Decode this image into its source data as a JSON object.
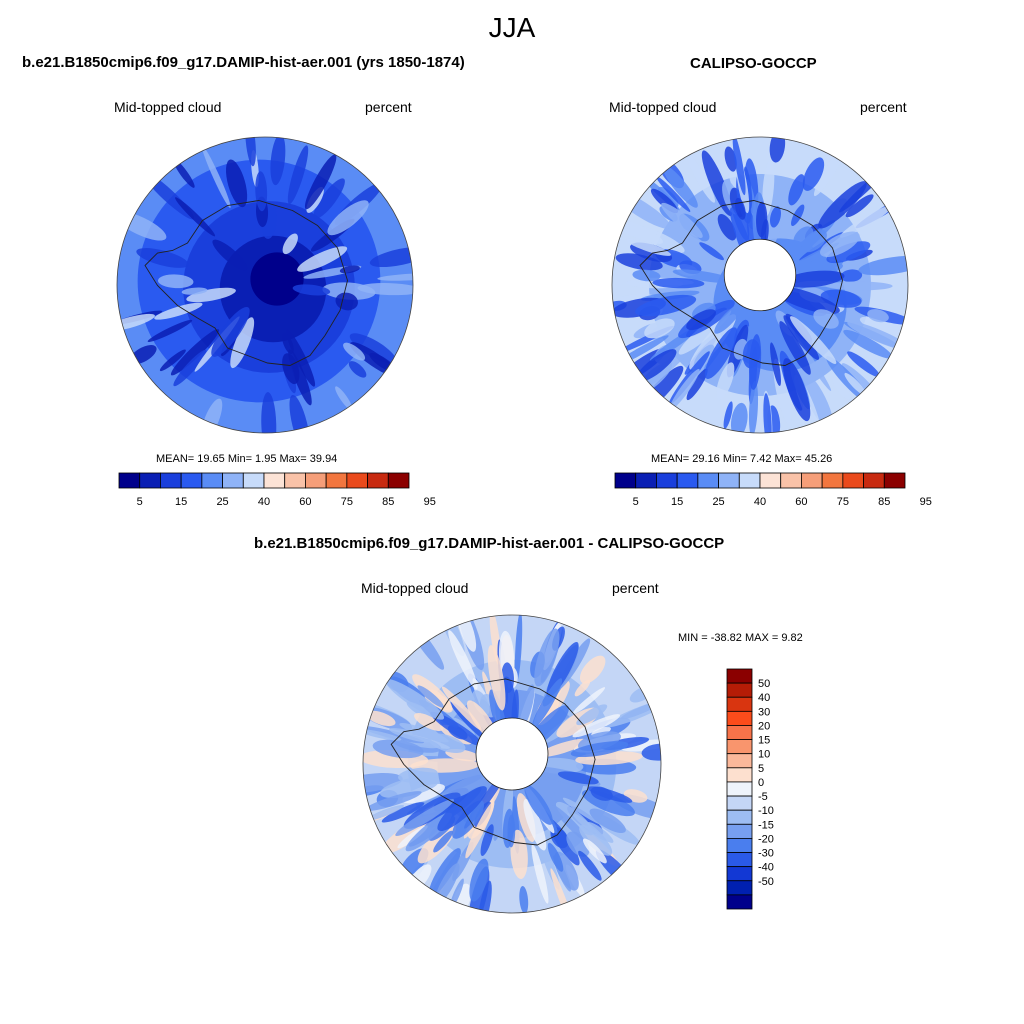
{
  "figure": {
    "title": "JJA"
  },
  "panels": [
    {
      "id": "model",
      "title": "b.e21.B1850cmip6.f09_g17.DAMIP-hist-aer.001 (yrs 1850-1874)",
      "left_label": "Mid-topped cloud",
      "right_label": "percent",
      "stats": "MEAN=  19.65  Min=    1.95  Max=  39.94",
      "hole": false
    },
    {
      "id": "obs",
      "title": "CALIPSO-GOCCP",
      "left_label": "Mid-topped cloud",
      "right_label": "percent",
      "stats": "MEAN=  29.16  Min=    7.42  Max=  45.26",
      "hole": true
    },
    {
      "id": "diff",
      "title": "b.e21.B1850cmip6.f09_g17.DAMIP-hist-aer.001 - CALIPSO-GOCCP",
      "left_label": "Mid-topped cloud",
      "right_label": "percent",
      "stats": "MIN = -38.82 MAX =   9.82",
      "hole": true
    }
  ],
  "abs_colorbar": {
    "colors": [
      "#00008b",
      "#0a1fb4",
      "#1a3fdc",
      "#2a5af0",
      "#5a8cf5",
      "#8fb3f7",
      "#c7dbfa",
      "#fce3d6",
      "#f9c2a8",
      "#f59e79",
      "#f2763f",
      "#ea4a1c",
      "#c82a10",
      "#8b0000"
    ],
    "tick_labels": [
      "5",
      "15",
      "25",
      "40",
      "60",
      "75",
      "85",
      "95"
    ]
  },
  "diff_colorbar": {
    "colors": [
      "#8b0000",
      "#b51c06",
      "#d93510",
      "#fb4c1b",
      "#f7734a",
      "#f9956d",
      "#fbb89a",
      "#fde0cf",
      "#eef3fb",
      "#c4d6f6",
      "#9dbdf3",
      "#779ff0",
      "#4a7eee",
      "#2a5ae8",
      "#1238d4",
      "#0020b0",
      "#00008b"
    ],
    "tick_labels": [
      "50",
      "40",
      "30",
      "20",
      "15",
      "10",
      "5",
      "0",
      "-5",
      "-10",
      "-15",
      "-20",
      "-30",
      "-40",
      "-50"
    ]
  }
}
